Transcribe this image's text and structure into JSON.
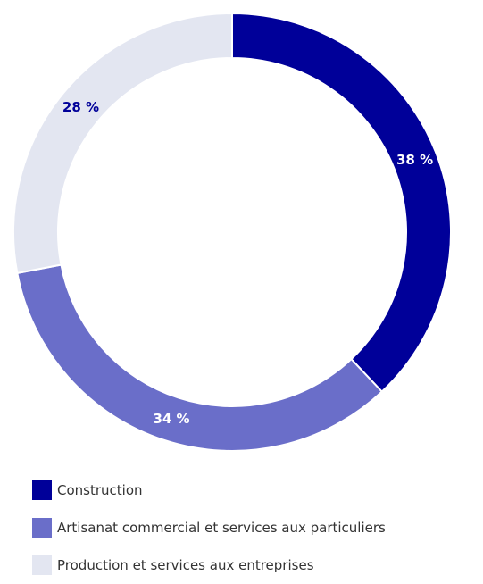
{
  "chart_data": {
    "type": "pie",
    "variant": "donut",
    "categories": [
      "Construction",
      "Artisanat commercial et services aux particuliers",
      "Production et services aux entreprises"
    ],
    "values": [
      38,
      34,
      28
    ],
    "value_labels": [
      "38 %",
      "34 %",
      "28 %"
    ],
    "colors": [
      "#000099",
      "#6a6ec9",
      "#e3e6f1"
    ],
    "label_colors": [
      "#ffffff",
      "#ffffff",
      "#000099"
    ],
    "start": "top, clockwise",
    "legend_position": "bottom-left"
  }
}
